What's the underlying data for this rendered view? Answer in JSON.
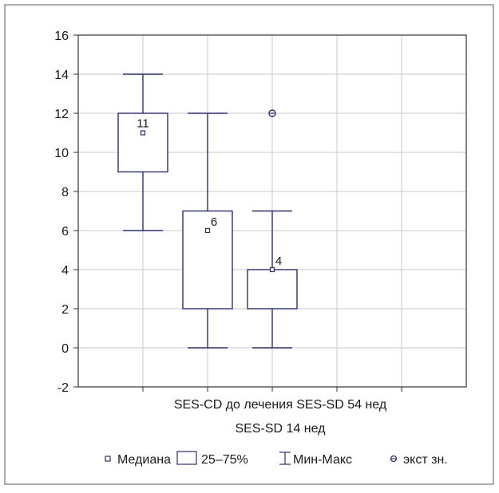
{
  "chart_data": {
    "type": "box",
    "ylim": [
      -2,
      16
    ],
    "y_ticks": [
      -2,
      0,
      2,
      4,
      6,
      8,
      10,
      12,
      14,
      16
    ],
    "grid": true,
    "x_tick_labels": [
      {
        "text": "SES-CD до лечения SES-SD 54 нед",
        "row": 1
      },
      {
        "text": "SES-SD 14 нед",
        "row": 2
      }
    ],
    "boxes": [
      {
        "name": "SES-CD до лечения",
        "x": 1,
        "min": 6,
        "q1": 9,
        "median": 11,
        "q3": 12,
        "max": 14,
        "median_label": "11",
        "outliers": []
      },
      {
        "name": "SES-SD 14 нед",
        "x": 2,
        "min": 0,
        "q1": 2,
        "median": 6,
        "q3": 7,
        "max": 12,
        "median_label": "6",
        "outliers": []
      },
      {
        "name": "SES-SD 54 нед",
        "x": 3,
        "min": 0,
        "q1": 2,
        "median": 4,
        "q3": 4,
        "max": 7,
        "median_label": "4",
        "outliers": [
          12
        ]
      }
    ],
    "legend": {
      "placement": "bottom",
      "items": [
        {
          "kind": "median",
          "label": "Медиана"
        },
        {
          "kind": "box",
          "label": "25–75%"
        },
        {
          "kind": "whisker",
          "label": "Мин-Макс"
        },
        {
          "kind": "outlier",
          "label": "экст зн."
        }
      ]
    },
    "colors": {
      "box": "#2b2f6e",
      "grid": "#c8c8c8",
      "frame": "#333333"
    }
  }
}
